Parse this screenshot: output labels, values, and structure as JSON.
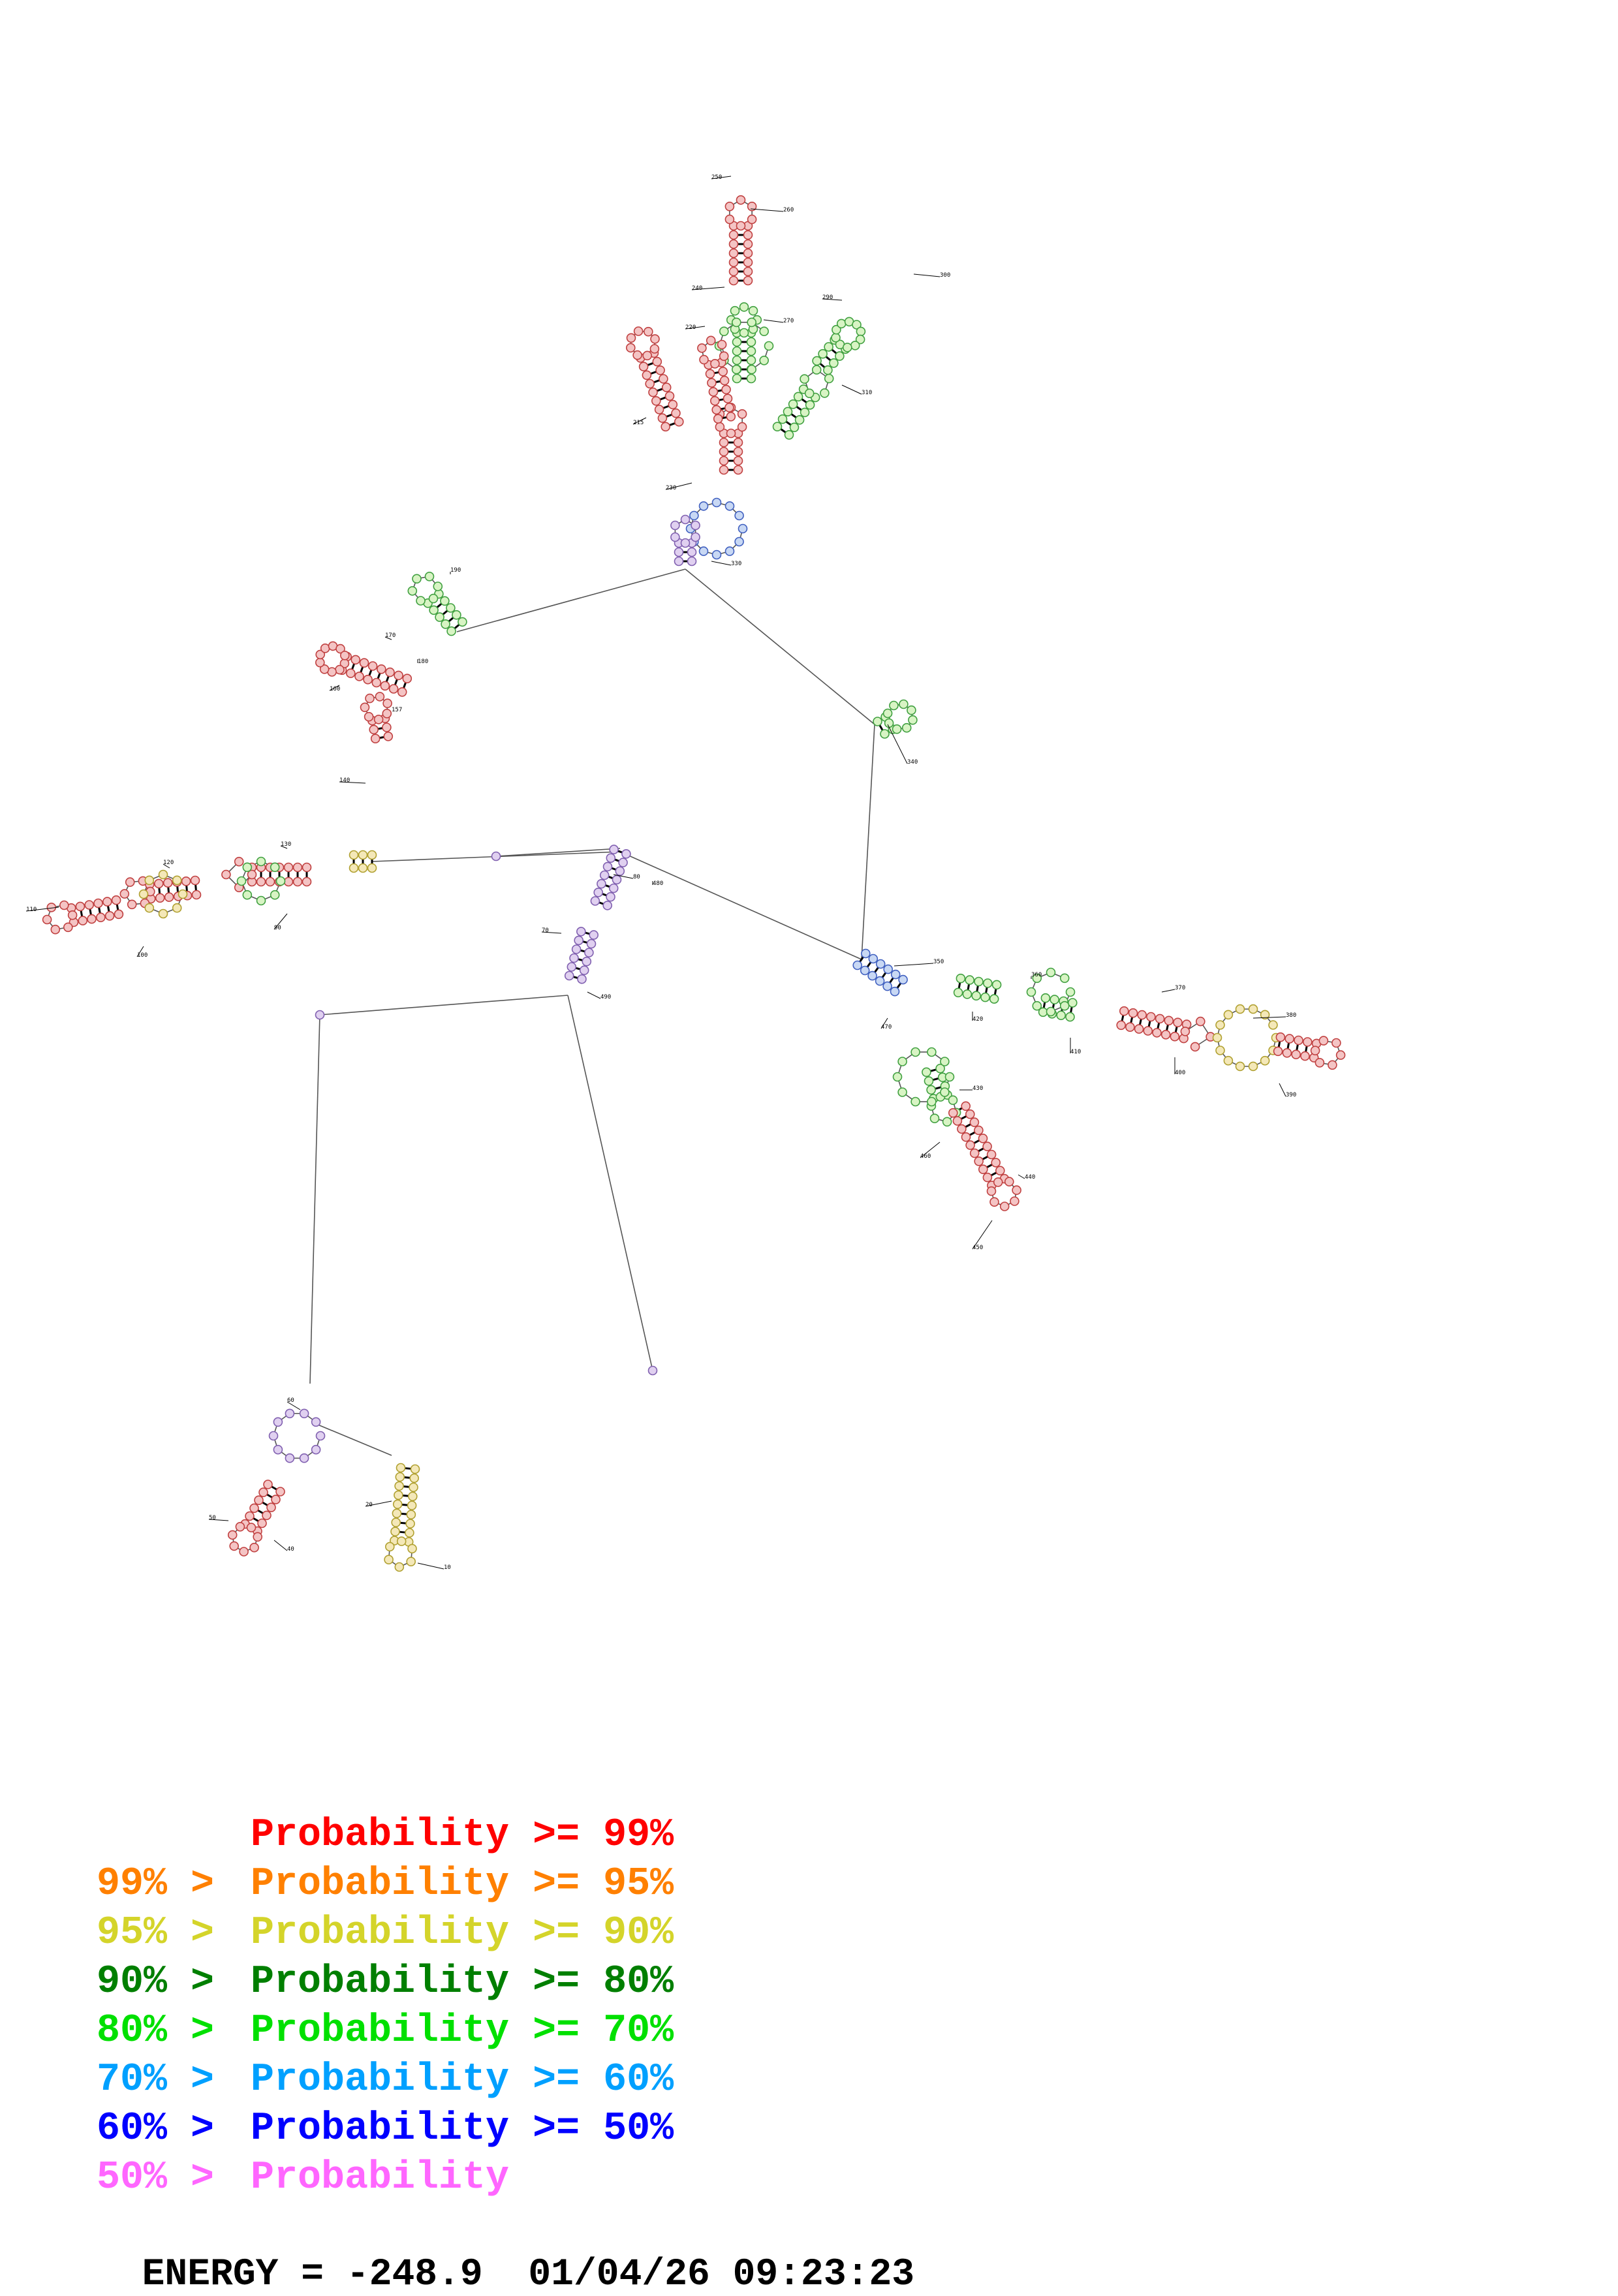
{
  "legend": [
    {
      "left": "",
      "right": "Probability >= 99%",
      "color": "#ff0000"
    },
    {
      "left": "99% >",
      "right": "Probability >= 95%",
      "color": "#ff8000"
    },
    {
      "left": "95% >",
      "right": "Probability >= 90%",
      "color": "#d4d42a"
    },
    {
      "left": "90% >",
      "right": "Probability >= 80%",
      "color": "#007f00"
    },
    {
      "left": "80% >",
      "right": "Probability >= 70%",
      "color": "#00e000"
    },
    {
      "left": "70% >",
      "right": "Probability >= 60%",
      "color": "#00a0ff"
    },
    {
      "left": "60% >",
      "right": "Probability >= 50%",
      "color": "#0000ff"
    },
    {
      "left": "50% >",
      "right": "Probability",
      "color": "#ff66ff"
    }
  ],
  "energy": {
    "label": "ENERGY =",
    "value": "-248.9",
    "timestamp": "01/04/26 09:23:23"
  },
  "position_labels": [
    "10",
    "20",
    "30",
    "40",
    "50",
    "60",
    "70",
    "80",
    "90",
    "100",
    "110",
    "120",
    "130",
    "140",
    "150",
    "160",
    "170",
    "180",
    "190",
    "200",
    "210",
    "220",
    "230",
    "240",
    "250",
    "260",
    "270",
    "280",
    "290",
    "300",
    "310",
    "320",
    "330",
    "340",
    "350",
    "360",
    "370",
    "380",
    "390",
    "400",
    "410",
    "420",
    "430",
    "440",
    "450",
    "460",
    "470",
    "480",
    "490"
  ],
  "nucleotide_fill_colors": [
    "#f4c4c4",
    "#d8f4c4",
    "#f4e8b8",
    "#c8d8f4",
    "#e0d0f0"
  ]
}
